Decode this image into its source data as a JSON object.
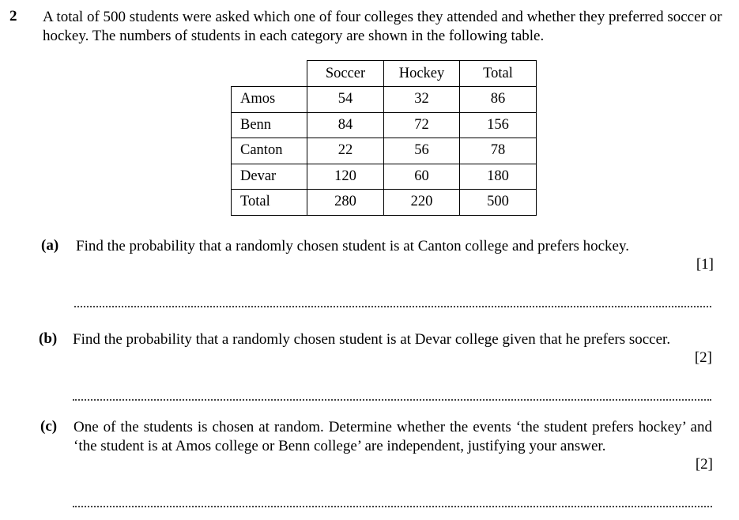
{
  "question": {
    "number": "2",
    "intro": "A total of 500 students were asked which one of four colleges they attended and whether they preferred soccer or hockey. The numbers of students in each category are shown in the following table."
  },
  "table": {
    "headers": [
      "",
      "Soccer",
      "Hockey",
      "Total"
    ],
    "rows": [
      [
        "Amos",
        "54",
        "32",
        "86"
      ],
      [
        "Benn",
        "84",
        "72",
        "156"
      ],
      [
        "Canton",
        "22",
        "56",
        "78"
      ],
      [
        "Devar",
        "120",
        "60",
        "180"
      ],
      [
        "Total",
        "280",
        "220",
        "500"
      ]
    ]
  },
  "parts": [
    {
      "label": "(a)",
      "text": "Find the probability that a randomly chosen student is at Canton college and prefers hockey.",
      "marks": "[1]"
    },
    {
      "label": "(b)",
      "text": "Find the probability that a randomly chosen student is at Devar college given that he prefers soccer.",
      "marks": "[2]"
    },
    {
      "label": "(c)",
      "text": "One of the students is chosen at random. Determine whether the events ‘the student prefers hockey’ and ‘the student is at Amos college or Benn college’ are independent, justifying your answer.",
      "marks": "[2]"
    }
  ]
}
